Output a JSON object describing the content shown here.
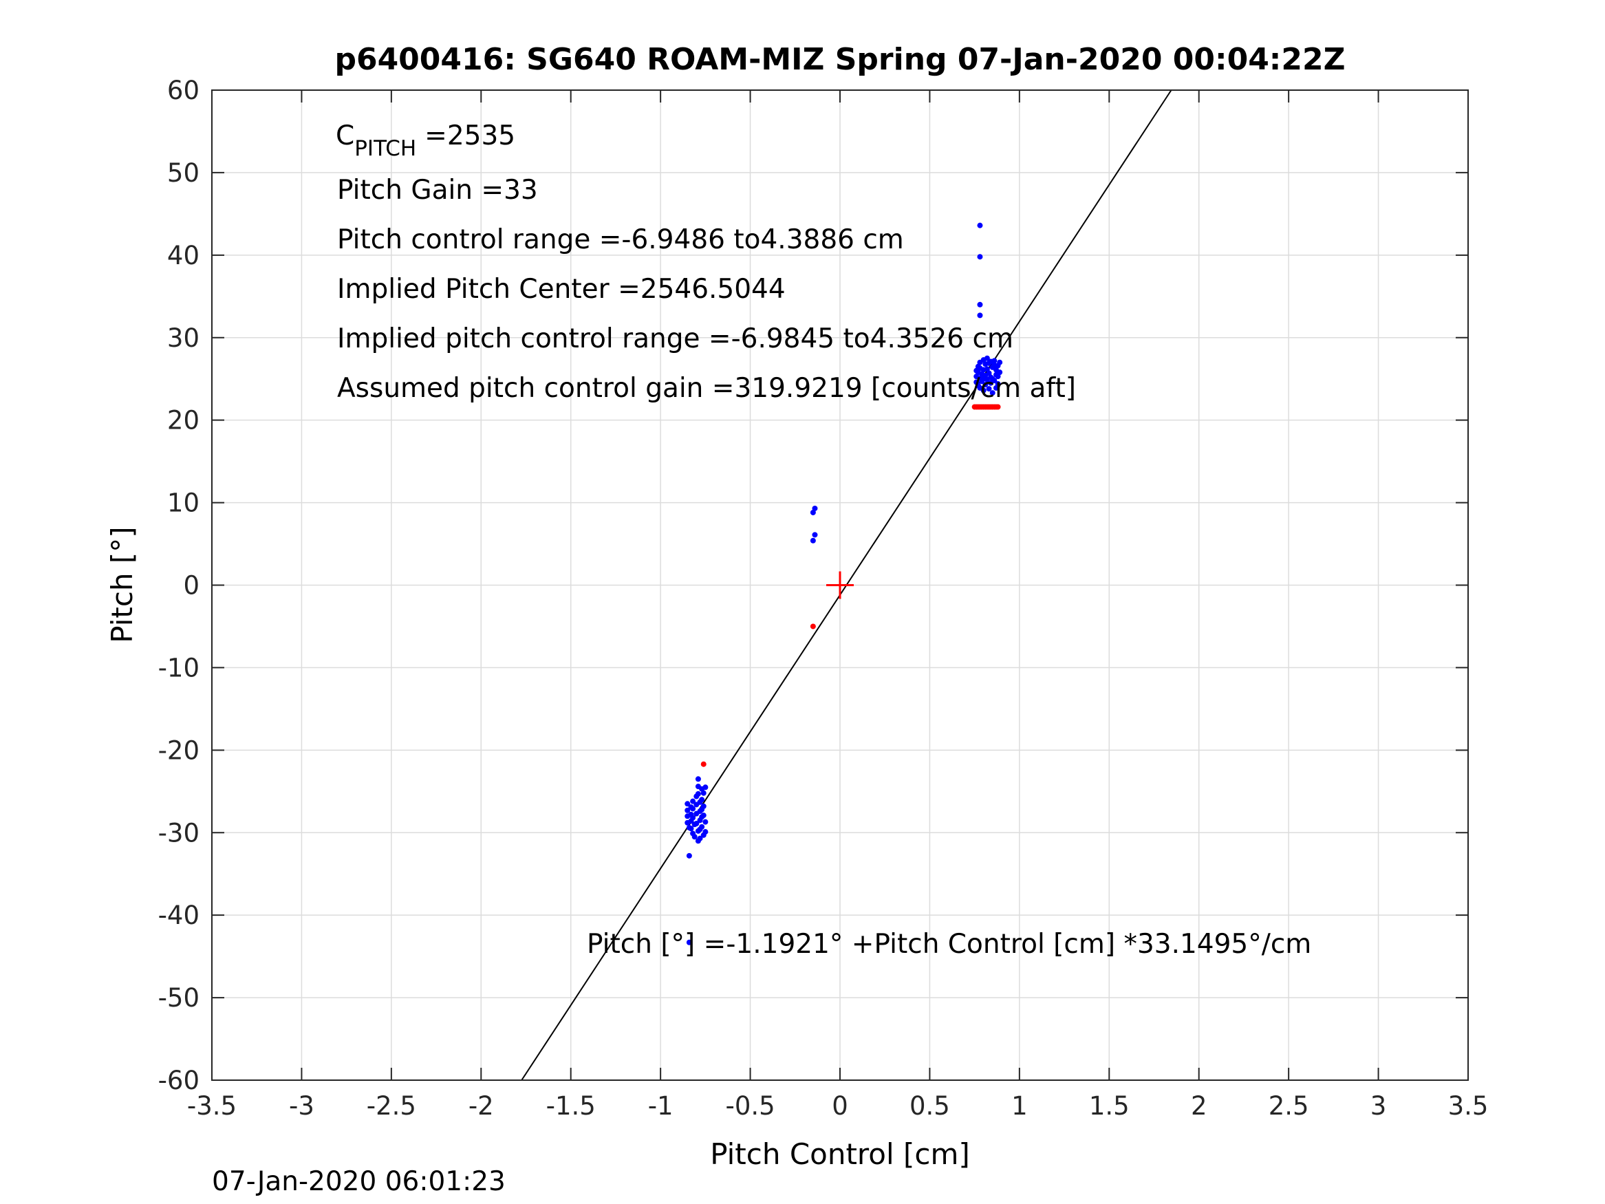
{
  "chart_data": {
    "type": "scatter",
    "title": "p6400416: SG640 ROAM-MIZ Spring 07-Jan-2020 00:04:22Z",
    "xlabel": "Pitch Control [cm]",
    "ylabel": "Pitch [°]",
    "xlim": [
      -3.5,
      3.5
    ],
    "ylim": [
      -60,
      60
    ],
    "xticks": [
      -3.5,
      -3,
      -2.5,
      -2,
      -1.5,
      -1,
      -0.5,
      0,
      0.5,
      1,
      1.5,
      2,
      2.5,
      3,
      3.5
    ],
    "xtick_labels": [
      "-3.5",
      "-3",
      "-2.5",
      "-2",
      "-1.5",
      "-1",
      "-0.5",
      "0",
      "0.5",
      "1",
      "1.5",
      "2",
      "2.5",
      "3",
      "3.5"
    ],
    "yticks": [
      -60,
      -50,
      -40,
      -30,
      -20,
      -10,
      0,
      10,
      20,
      30,
      40,
      50,
      60
    ],
    "ytick_labels": [
      "-60",
      "-50",
      "-40",
      "-30",
      "-20",
      "-10",
      "0",
      "10",
      "20",
      "30",
      "40",
      "50",
      "60"
    ],
    "grid": true,
    "colors": {
      "blue": "#0000ff",
      "red": "#ff0000",
      "line": "#000000",
      "grid": "#dcdcdc"
    },
    "fit_line": {
      "intercept": -1.1921,
      "slope": 33.1495
    },
    "center_marker": {
      "x": 0,
      "y": 0,
      "color": "#ff0000",
      "symbol": "+"
    },
    "series": [
      {
        "color": "#0000ff",
        "points": [
          [
            -0.84,
            -32.8
          ],
          [
            -0.84,
            -43.3
          ],
          [
            -0.85,
            -26.5
          ],
          [
            -0.85,
            -27.3
          ],
          [
            -0.85,
            -28.0
          ],
          [
            -0.85,
            -28.8
          ],
          [
            -0.84,
            -29.4
          ],
          [
            -0.83,
            -26.9
          ],
          [
            -0.83,
            -27.8
          ],
          [
            -0.83,
            -28.6
          ],
          [
            -0.83,
            -29.5
          ],
          [
            -0.82,
            -30.1
          ],
          [
            -0.82,
            -26.2
          ],
          [
            -0.82,
            -27.1
          ],
          [
            -0.82,
            -28.2
          ],
          [
            -0.81,
            -29.0
          ],
          [
            -0.81,
            -30.5
          ],
          [
            -0.8,
            -25.6
          ],
          [
            -0.8,
            -26.6
          ],
          [
            -0.8,
            -27.7
          ],
          [
            -0.8,
            -28.9
          ],
          [
            -0.79,
            -29.8
          ],
          [
            -0.79,
            -31.0
          ],
          [
            -0.79,
            -23.5
          ],
          [
            -0.79,
            -24.4
          ],
          [
            -0.79,
            -25.3
          ],
          [
            -0.78,
            -26.3
          ],
          [
            -0.78,
            -27.4
          ],
          [
            -0.78,
            -28.5
          ],
          [
            -0.78,
            -29.6
          ],
          [
            -0.78,
            -30.7
          ],
          [
            -0.77,
            -24.7
          ],
          [
            -0.77,
            -26.0
          ],
          [
            -0.77,
            -27.2
          ],
          [
            -0.77,
            -28.1
          ],
          [
            -0.77,
            -29.3
          ],
          [
            -0.76,
            -30.3
          ],
          [
            -0.76,
            -25.2
          ],
          [
            -0.76,
            -26.8
          ],
          [
            -0.76,
            -27.9
          ],
          [
            -0.75,
            -28.7
          ],
          [
            -0.75,
            -24.5
          ],
          [
            -0.75,
            -29.9
          ],
          [
            -0.14,
            9.3
          ],
          [
            -0.15,
            8.8
          ],
          [
            -0.14,
            6.1
          ],
          [
            -0.15,
            5.4
          ],
          [
            0.78,
            43.6
          ],
          [
            0.78,
            39.8
          ],
          [
            0.78,
            34.0
          ],
          [
            0.78,
            32.7
          ],
          [
            0.76,
            25.3
          ],
          [
            0.76,
            26.0
          ],
          [
            0.76,
            24.6
          ],
          [
            0.77,
            25.8
          ],
          [
            0.77,
            26.5
          ],
          [
            0.77,
            24.2
          ],
          [
            0.78,
            25.1
          ],
          [
            0.78,
            26.3
          ],
          [
            0.78,
            27.0
          ],
          [
            0.78,
            23.9
          ],
          [
            0.79,
            25.6
          ],
          [
            0.79,
            24.7
          ],
          [
            0.8,
            26.1
          ],
          [
            0.8,
            27.3
          ],
          [
            0.8,
            25.0
          ],
          [
            0.8,
            23.6
          ],
          [
            0.81,
            26.8
          ],
          [
            0.81,
            25.4
          ],
          [
            0.81,
            24.3
          ],
          [
            0.82,
            27.5
          ],
          [
            0.82,
            26.2
          ],
          [
            0.82,
            24.9
          ],
          [
            0.83,
            25.7
          ],
          [
            0.83,
            26.9
          ],
          [
            0.83,
            23.8
          ],
          [
            0.84,
            27.1
          ],
          [
            0.84,
            25.2
          ],
          [
            0.84,
            24.5
          ],
          [
            0.85,
            26.4
          ],
          [
            0.85,
            25.0
          ],
          [
            0.85,
            23.3
          ],
          [
            0.86,
            26.7
          ],
          [
            0.86,
            24.8
          ],
          [
            0.86,
            27.2
          ],
          [
            0.87,
            25.5
          ],
          [
            0.87,
            26.1
          ],
          [
            0.87,
            23.9
          ],
          [
            0.88,
            26.6
          ],
          [
            0.88,
            25.3
          ],
          [
            0.88,
            24.4
          ],
          [
            0.89,
            27.0
          ],
          [
            0.89,
            25.8
          ]
        ]
      },
      {
        "color": "#ff0000",
        "points": [
          [
            -0.76,
            -21.7
          ],
          [
            -0.15,
            -5.0
          ],
          [
            0.75,
            21.6
          ],
          [
            0.76,
            21.6
          ],
          [
            0.77,
            21.6
          ],
          [
            0.78,
            21.6
          ],
          [
            0.79,
            21.6
          ],
          [
            0.8,
            21.6
          ],
          [
            0.81,
            21.6
          ],
          [
            0.82,
            21.6
          ],
          [
            0.83,
            21.6
          ],
          [
            0.84,
            21.6
          ],
          [
            0.85,
            21.6
          ],
          [
            0.86,
            21.6
          ],
          [
            0.87,
            21.6
          ],
          [
            0.88,
            21.6
          ]
        ]
      }
    ],
    "annotations": {
      "cpitch_base": "C",
      "cpitch_sub": "PITCH",
      "cpitch_value": "=2535",
      "pitch_gain": "Pitch Gain =33",
      "pitch_control_range": "Pitch control range =-6.9486 to4.3886 cm",
      "implied_center": "Implied Pitch Center =2546.5044",
      "implied_range": "Implied pitch control range =-6.9845 to4.3526 cm",
      "assumed_gain": "Assumed pitch control gain =319.9219 [counts/cm aft]",
      "fit_equation": "Pitch [°] =-1.1921° +Pitch Control [cm] *33.1495°/cm"
    }
  },
  "footer_timestamp": "07-Jan-2020 06:01:23"
}
